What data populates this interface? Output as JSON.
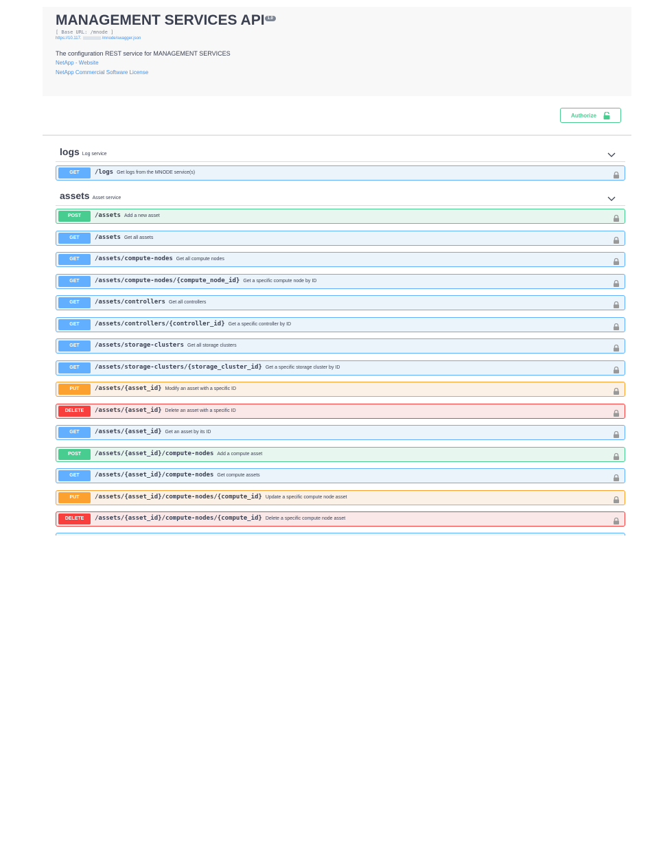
{
  "header": {
    "title": "MANAGEMENT SERVICES API",
    "version": "1.0",
    "base_url": "[ Base URL: /mnode ]",
    "url_prefix": "https://10.117.",
    "url_suffix": "/mnode/swagger.json",
    "description": "The configuration REST service for MANAGEMENT SERVICES",
    "links": [
      "NetApp - Website",
      "NetApp Commercial Software License"
    ]
  },
  "authorize": "Authorize",
  "tags": [
    {
      "name": "logs",
      "description": "Log service",
      "operations": [
        {
          "method": "GET",
          "path": "/logs",
          "summary": "Get logs from the MNODE service(s)"
        }
      ]
    },
    {
      "name": "assets",
      "description": "Asset service",
      "operations": [
        {
          "method": "POST",
          "path": "/assets",
          "summary": "Add a new asset"
        },
        {
          "method": "GET",
          "path": "/assets",
          "summary": "Get all assets"
        },
        {
          "method": "GET",
          "path": "/assets/compute-nodes",
          "summary": "Get all compute nodes"
        },
        {
          "method": "GET",
          "path": "/assets/compute-nodes/{compute_node_id}",
          "summary": "Get a specific compute node by ID"
        },
        {
          "method": "GET",
          "path": "/assets/controllers",
          "summary": "Get all controllers"
        },
        {
          "method": "GET",
          "path": "/assets/controllers/{controller_id}",
          "summary": "Get a specific controller by ID"
        },
        {
          "method": "GET",
          "path": "/assets/storage-clusters",
          "summary": "Get all storage clusters"
        },
        {
          "method": "GET",
          "path": "/assets/storage-clusters/{storage_cluster_id}",
          "summary": "Get a specific storage cluster by ID"
        },
        {
          "method": "PUT",
          "path": "/assets/{asset_id}",
          "summary": "Modify an asset with a specific ID"
        },
        {
          "method": "DELETE",
          "path": "/assets/{asset_id}",
          "summary": "Delete an asset with a specific ID"
        },
        {
          "method": "GET",
          "path": "/assets/{asset_id}",
          "summary": "Get an asset by its ID"
        },
        {
          "method": "POST",
          "path": "/assets/{asset_id}/compute-nodes",
          "summary": "Add a compute asset"
        },
        {
          "method": "GET",
          "path": "/assets/{asset_id}/compute-nodes",
          "summary": "Get compute assets"
        },
        {
          "method": "PUT",
          "path": "/assets/{asset_id}/compute-nodes/{compute_id}",
          "summary": "Update a specific compute node asset"
        },
        {
          "method": "DELETE",
          "path": "/assets/{asset_id}/compute-nodes/{compute_id}",
          "summary": "Delete a specific compute node asset"
        }
      ]
    }
  ]
}
